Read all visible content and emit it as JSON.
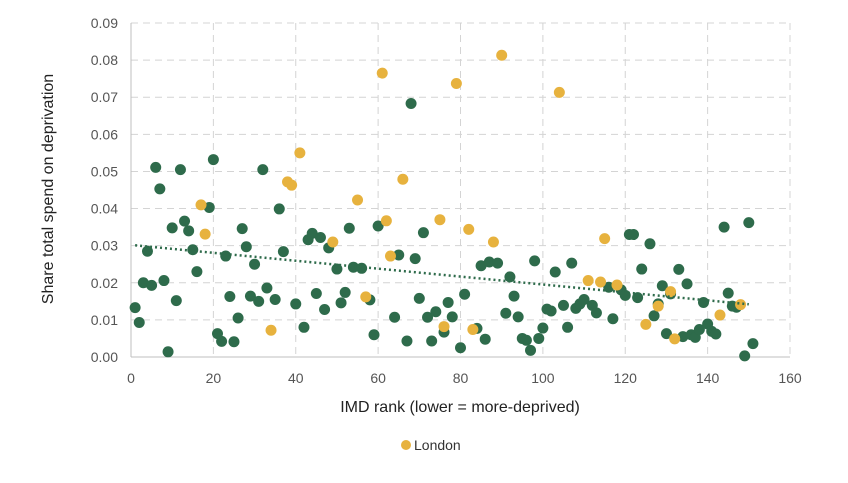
{
  "chart_data": {
    "type": "scatter",
    "xlabel": "IMD rank (lower = more-deprived)",
    "ylabel": "Share total spend on deprivation",
    "xlim": [
      0,
      160
    ],
    "ylim": [
      0,
      0.09
    ],
    "x_ticks": [
      "0",
      "20",
      "40",
      "60",
      "80",
      "100",
      "120",
      "140",
      "160"
    ],
    "y_ticks": [
      "0.00",
      "0.01",
      "0.02",
      "0.03",
      "0.04",
      "0.05",
      "0.06",
      "0.07",
      "0.08",
      "0.09"
    ],
    "grid": true,
    "legend_position": "bottom-center",
    "colors": {
      "other": "#2e6b4b",
      "london": "#e7b23e",
      "trend": "#2e6b4b"
    },
    "trendline": {
      "style": "dotted",
      "x": [
        1,
        150
      ],
      "y": [
        0.0301,
        0.0142
      ]
    },
    "series": [
      {
        "key": "other",
        "points": [
          [
            1,
            0.0133
          ],
          [
            2,
            0.0093
          ],
          [
            3,
            0.02
          ],
          [
            4,
            0.0285
          ],
          [
            5,
            0.0193
          ],
          [
            6,
            0.0511
          ],
          [
            7,
            0.0453
          ],
          [
            8,
            0.0206
          ],
          [
            9,
            0.0014
          ],
          [
            10,
            0.0348
          ],
          [
            11,
            0.0152
          ],
          [
            12,
            0.0505
          ],
          [
            13,
            0.0366
          ],
          [
            14,
            0.034
          ],
          [
            15,
            0.0289
          ],
          [
            16,
            0.023
          ],
          [
            19,
            0.0403
          ],
          [
            20,
            0.0532
          ],
          [
            21,
            0.0063
          ],
          [
            22,
            0.0042
          ],
          [
            23,
            0.0272
          ],
          [
            24,
            0.0163
          ],
          [
            25,
            0.0041
          ],
          [
            26,
            0.0105
          ],
          [
            27,
            0.0346
          ],
          [
            28,
            0.0297
          ],
          [
            29,
            0.0164
          ],
          [
            30,
            0.025
          ],
          [
            31,
            0.015
          ],
          [
            32,
            0.0505
          ],
          [
            33,
            0.0186
          ],
          [
            35,
            0.0155
          ],
          [
            36,
            0.0399
          ],
          [
            37,
            0.0284
          ],
          [
            40,
            0.0143
          ],
          [
            42,
            0.008
          ],
          [
            43,
            0.0316
          ],
          [
            44,
            0.0333
          ],
          [
            45,
            0.0171
          ],
          [
            46,
            0.0322
          ],
          [
            47,
            0.0128
          ],
          [
            48,
            0.0294
          ],
          [
            50,
            0.0237
          ],
          [
            51,
            0.0146
          ],
          [
            52,
            0.0174
          ],
          [
            53,
            0.0347
          ],
          [
            54,
            0.0242
          ],
          [
            56,
            0.0239
          ],
          [
            58,
            0.0154
          ],
          [
            59,
            0.006
          ],
          [
            60,
            0.0353
          ],
          [
            64,
            0.0107
          ],
          [
            65,
            0.0275
          ],
          [
            67,
            0.0043
          ],
          [
            68,
            0.0683
          ],
          [
            69,
            0.0265
          ],
          [
            70,
            0.0158
          ],
          [
            71,
            0.0335
          ],
          [
            72,
            0.0107
          ],
          [
            73,
            0.0043
          ],
          [
            74,
            0.0122
          ],
          [
            76,
            0.0067
          ],
          [
            77,
            0.0147
          ],
          [
            78,
            0.0108
          ],
          [
            80,
            0.0025
          ],
          [
            81,
            0.0169
          ],
          [
            84,
            0.0077
          ],
          [
            85,
            0.0246
          ],
          [
            86,
            0.0048
          ],
          [
            87,
            0.0256
          ],
          [
            89,
            0.0253
          ],
          [
            91,
            0.0118
          ],
          [
            92,
            0.0216
          ],
          [
            93,
            0.0164
          ],
          [
            94,
            0.0108
          ],
          [
            95,
            0.005
          ],
          [
            96,
            0.0045
          ],
          [
            97,
            0.0018
          ],
          [
            98,
            0.0259
          ],
          [
            99,
            0.005
          ],
          [
            100,
            0.0078
          ],
          [
            101,
            0.0129
          ],
          [
            102,
            0.0124
          ],
          [
            103,
            0.0229
          ],
          [
            105,
            0.0139
          ],
          [
            106,
            0.008
          ],
          [
            107,
            0.0253
          ],
          [
            108,
            0.0131
          ],
          [
            109,
            0.0143
          ],
          [
            110,
            0.0155
          ],
          [
            112,
            0.0139
          ],
          [
            113,
            0.0119
          ],
          [
            116,
            0.0188
          ],
          [
            117,
            0.0103
          ],
          [
            119,
            0.0181
          ],
          [
            120,
            0.0166
          ],
          [
            121,
            0.033
          ],
          [
            122,
            0.033
          ],
          [
            123,
            0.016
          ],
          [
            124,
            0.0237
          ],
          [
            126,
            0.0305
          ],
          [
            127,
            0.0111
          ],
          [
            128,
            0.0143
          ],
          [
            129,
            0.0192
          ],
          [
            130,
            0.0063
          ],
          [
            131,
            0.017
          ],
          [
            133,
            0.0236
          ],
          [
            134,
            0.0055
          ],
          [
            135,
            0.0197
          ],
          [
            136,
            0.006
          ],
          [
            137,
            0.0053
          ],
          [
            138,
            0.0074
          ],
          [
            139,
            0.0147
          ],
          [
            140,
            0.0089
          ],
          [
            141,
            0.0069
          ],
          [
            142,
            0.0062
          ],
          [
            144,
            0.035
          ],
          [
            145,
            0.0172
          ],
          [
            146,
            0.0137
          ],
          [
            147,
            0.0134
          ],
          [
            149,
            0.0003
          ],
          [
            150,
            0.0362
          ],
          [
            151,
            0.0036
          ]
        ]
      },
      {
        "key": "london",
        "name": "London",
        "points": [
          [
            17,
            0.041
          ],
          [
            18,
            0.0331
          ],
          [
            34,
            0.0072
          ],
          [
            38,
            0.0472
          ],
          [
            39,
            0.0463
          ],
          [
            41,
            0.055
          ],
          [
            49,
            0.031
          ],
          [
            55,
            0.0423
          ],
          [
            57,
            0.0162
          ],
          [
            61,
            0.0765
          ],
          [
            62,
            0.0367
          ],
          [
            63,
            0.0272
          ],
          [
            66,
            0.0479
          ],
          [
            75,
            0.037
          ],
          [
            76,
            0.0082
          ],
          [
            79,
            0.0737
          ],
          [
            82,
            0.0344
          ],
          [
            83,
            0.0074
          ],
          [
            88,
            0.031
          ],
          [
            90,
            0.0813
          ],
          [
            104,
            0.0713
          ],
          [
            111,
            0.0206
          ],
          [
            114,
            0.0202
          ],
          [
            115,
            0.0319
          ],
          [
            118,
            0.0194
          ],
          [
            125,
            0.0088
          ],
          [
            128,
            0.0137
          ],
          [
            131,
            0.0176
          ],
          [
            132,
            0.0049
          ],
          [
            143,
            0.0113
          ],
          [
            148,
            0.0141
          ]
        ]
      }
    ]
  }
}
